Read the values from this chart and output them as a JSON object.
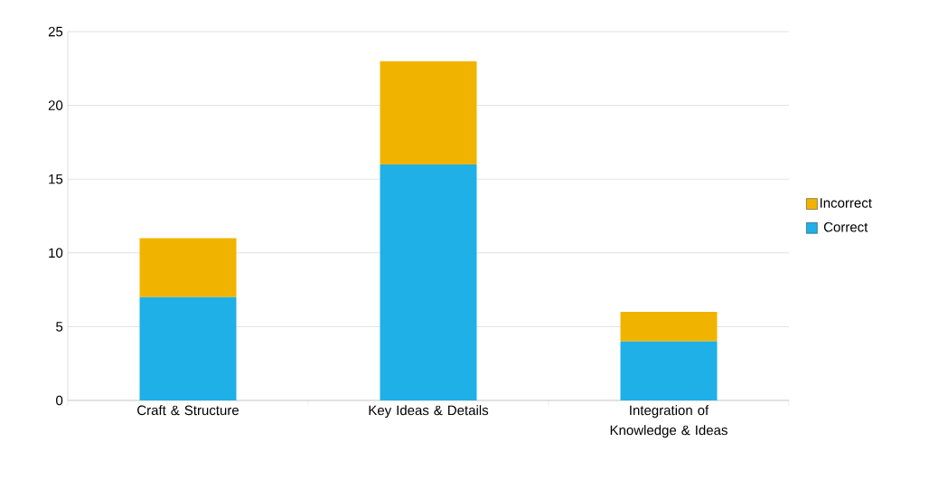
{
  "chart_data": {
    "type": "bar",
    "stacked": true,
    "categories": [
      "Craft & Structure",
      "Key Ideas & Details",
      "Integration of Knowledge & Ideas"
    ],
    "series": [
      {
        "name": "Correct",
        "color": "#1eb0e6",
        "values": [
          7,
          16,
          4
        ]
      },
      {
        "name": "Incorrect",
        "color": "#f0b400",
        "values": [
          4,
          7,
          2
        ]
      }
    ],
    "ylim": [
      0,
      25
    ],
    "yticks": [
      0,
      5,
      10,
      15,
      20,
      25
    ],
    "grid": "y",
    "legend": "right"
  }
}
